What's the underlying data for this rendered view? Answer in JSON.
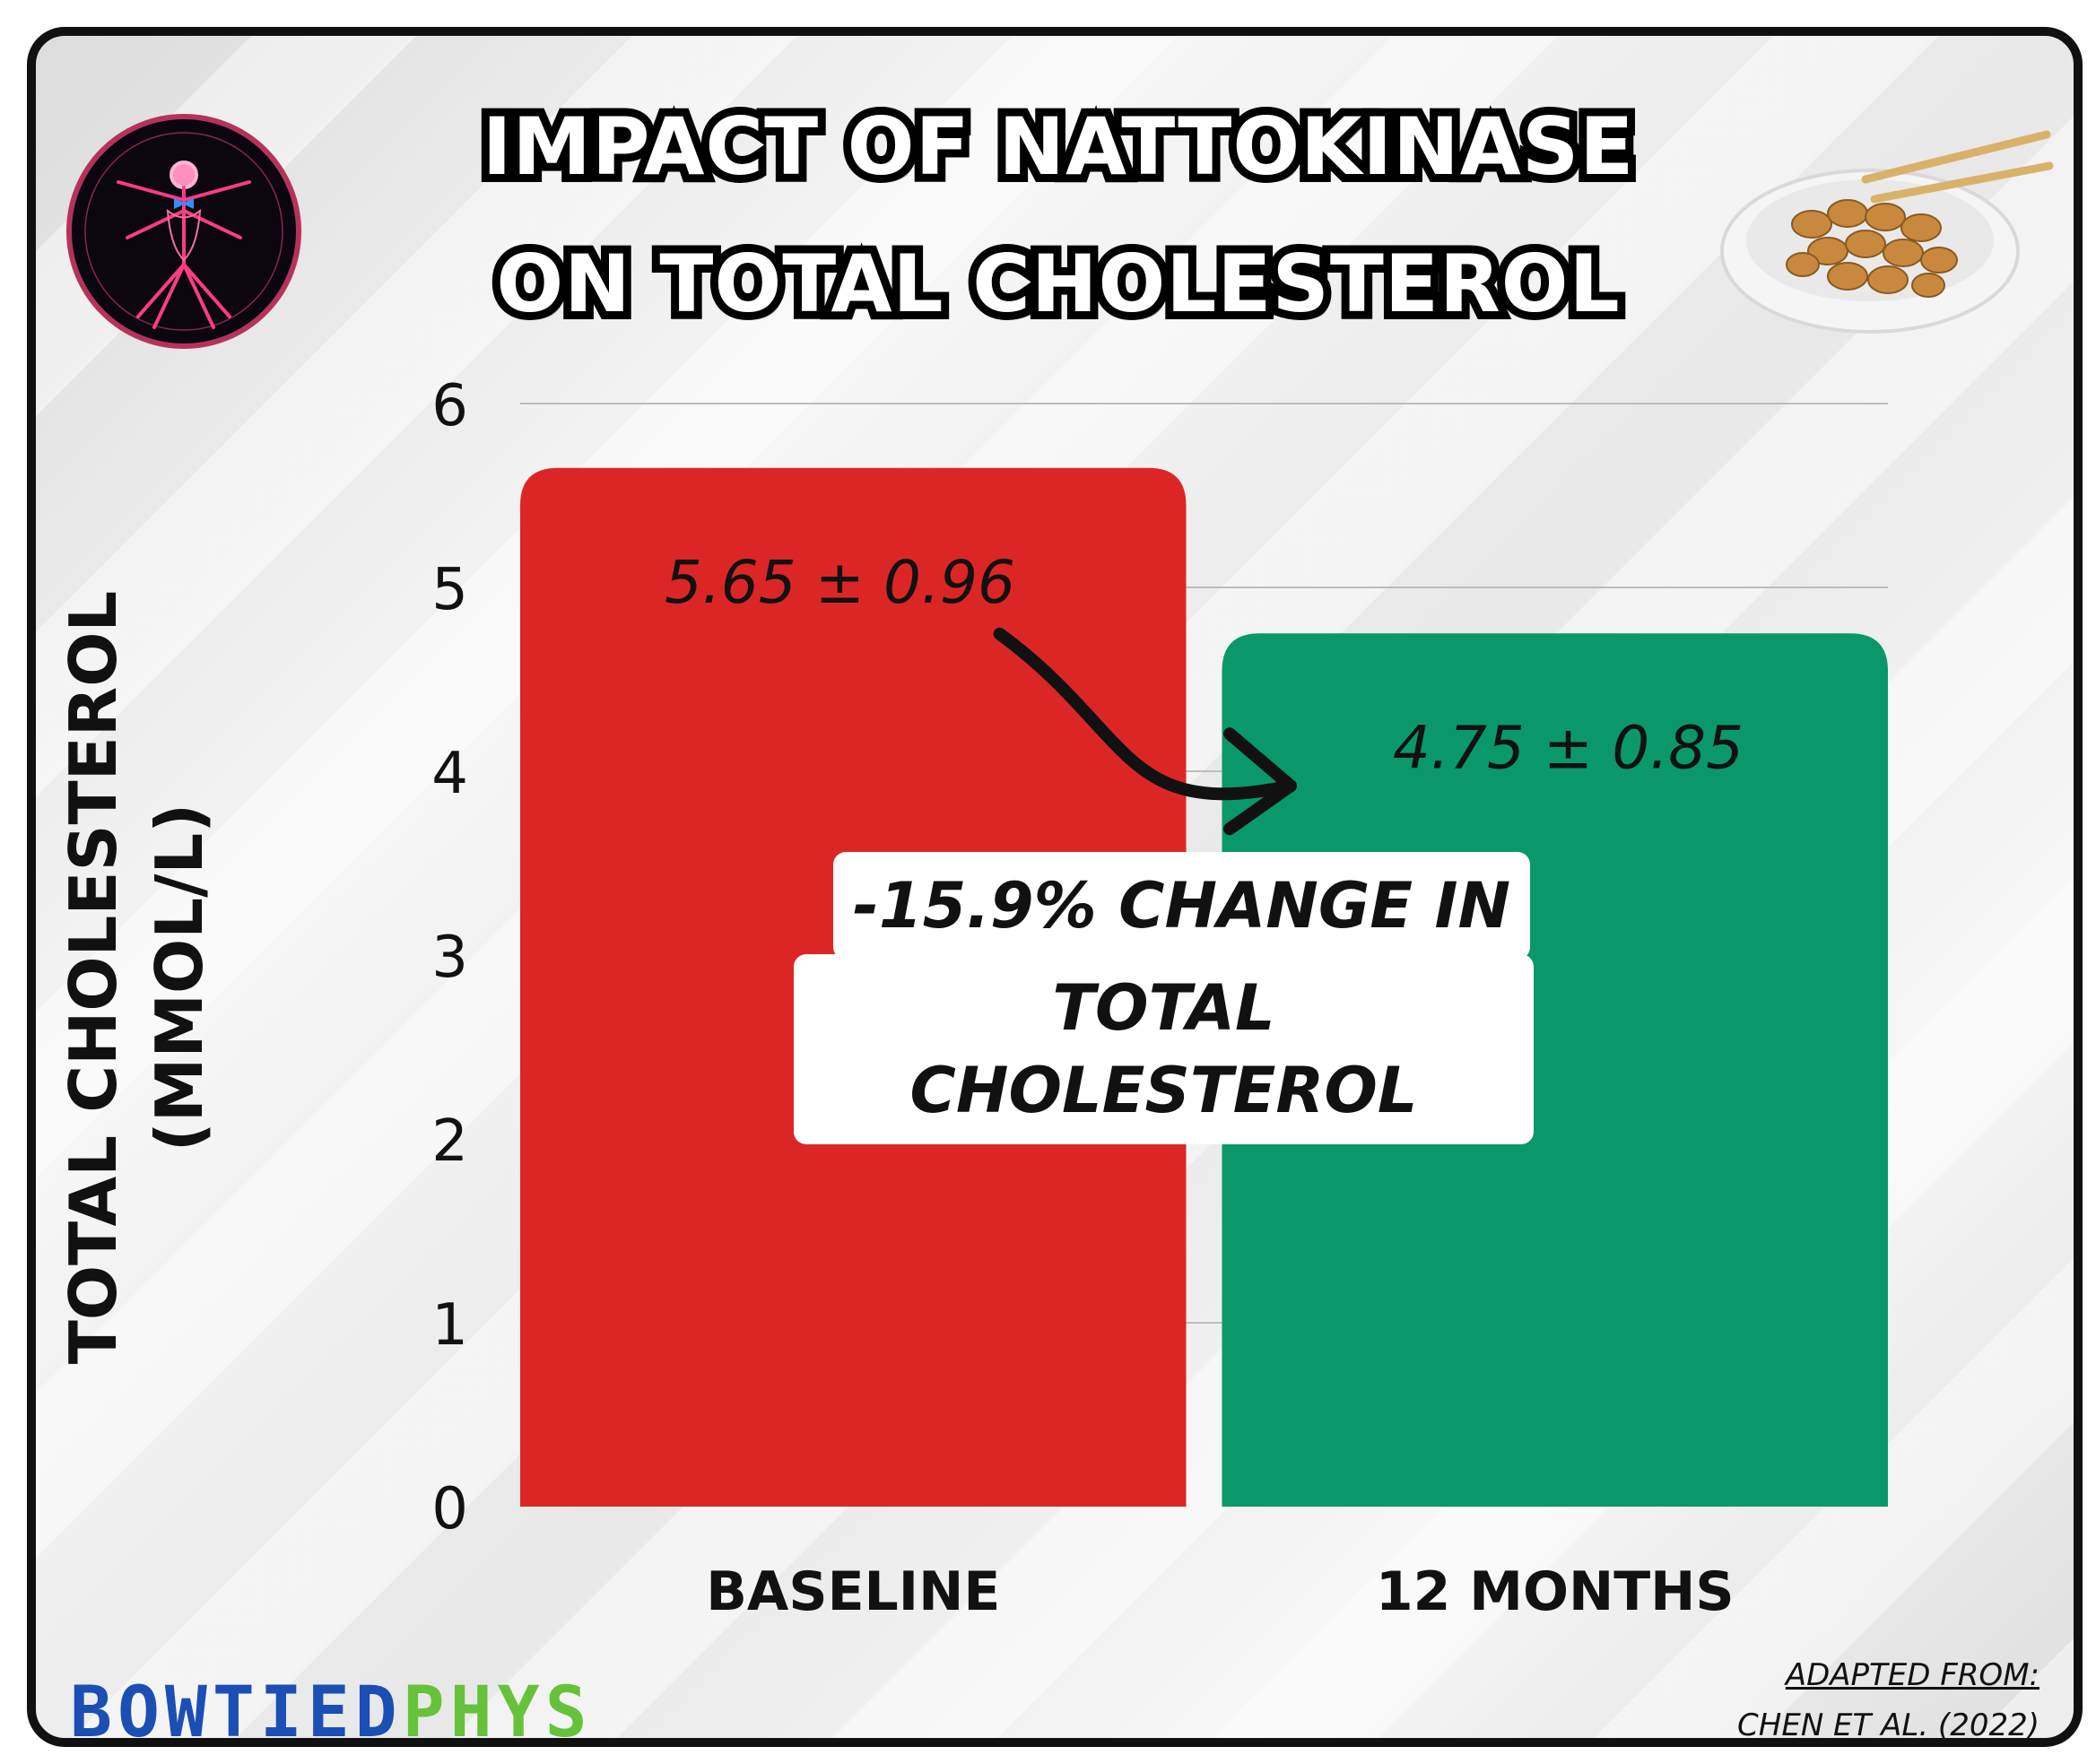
{
  "header": {
    "title_line1": "IMPACT OF NATTOKINASE",
    "title_line2": "ON TOTAL CHOLESTEROL"
  },
  "chart_data": {
    "type": "bar",
    "categories": [
      "BASELINE",
      "12 MONTHS"
    ],
    "values": [
      5.65,
      4.75
    ],
    "sd": [
      0.96,
      0.85
    ],
    "value_labels": [
      "5.65 ± 0.96",
      "4.75 ± 0.85"
    ],
    "colors": [
      "#dc2626",
      "#0a986a"
    ],
    "ylabel_line1": "TOTAL CHOLESTEROL",
    "ylabel_line2": "(MMOL/L)",
    "ylim": [
      0,
      6
    ],
    "yticks": [
      0,
      1,
      2,
      3,
      4,
      5,
      6
    ],
    "grid": true
  },
  "annotation": {
    "line1": "-15.9% CHANGE IN",
    "line2": "TOTAL CHOLESTEROL"
  },
  "brand": {
    "part1": "BOWTIED",
    "part2": "PHYS"
  },
  "source": {
    "line1": "ADAPTED FROM:",
    "line2": "CHEN ET AL. (2022)"
  },
  "icons": {
    "left": "anatomy-logo-icon",
    "right": "natto-bowl-icon"
  }
}
